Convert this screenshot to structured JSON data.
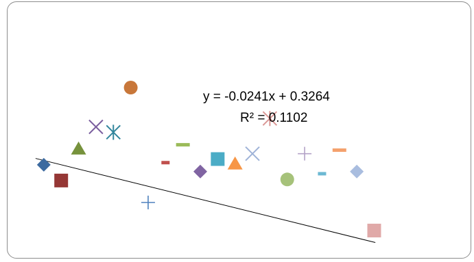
{
  "chart_data": {
    "type": "scatter",
    "title": "",
    "xlabel": "",
    "ylabel": "",
    "xlim": [
      0,
      20
    ],
    "ylim": [
      -0.2,
      1.2
    ],
    "grid": false,
    "legend": "none",
    "series": [
      {
        "marker": "diamond",
        "color": "#3c6a9f",
        "x": 1,
        "y": 0.278
      },
      {
        "marker": "square",
        "color": "#953735",
        "x": 2,
        "y": 0.19
      },
      {
        "marker": "triangle",
        "color": "#76923c",
        "x": 3,
        "y": 0.37
      },
      {
        "marker": "x",
        "color": "#7b5f9f",
        "x": 4,
        "y": 0.49
      },
      {
        "marker": "star",
        "color": "#31859c",
        "x": 5,
        "y": 0.46
      },
      {
        "marker": "circle",
        "color": "#c8773a",
        "x": 6,
        "y": 0.71
      },
      {
        "marker": "plus",
        "color": "#4f81bd",
        "x": 7,
        "y": 0.067
      },
      {
        "marker": "dash",
        "color": "#c0504d",
        "x": 8,
        "y": 0.29
      },
      {
        "marker": "dash",
        "color": "#9bbb59",
        "x": 9,
        "y": 0.39
      },
      {
        "marker": "diamond",
        "color": "#8064a2",
        "x": 10,
        "y": 0.24
      },
      {
        "marker": "square",
        "color": "#4bacc6",
        "x": 11,
        "y": 0.31
      },
      {
        "marker": "triangle",
        "color": "#f79646",
        "x": 12,
        "y": 0.286
      },
      {
        "marker": "x",
        "color": "#9fb3d8",
        "x": 13,
        "y": 0.34
      },
      {
        "marker": "star",
        "color": "#da9694",
        "x": 14,
        "y": 0.537
      },
      {
        "marker": "circle",
        "color": "#a6c27a",
        "x": 15,
        "y": 0.196
      },
      {
        "marker": "plus",
        "color": "#b3a2c7",
        "x": 16,
        "y": 0.34
      },
      {
        "marker": "dash",
        "color": "#6cb8d3",
        "x": 17,
        "y": 0.228
      },
      {
        "marker": "dash",
        "color": "#f4a16d",
        "x": 18,
        "y": 0.36
      },
      {
        "marker": "diamond",
        "color": "#a9bddf",
        "x": 19,
        "y": 0.24
      },
      {
        "marker": "square",
        "color": "#e0a9a8",
        "x": 20,
        "y": -0.09
      }
    ],
    "trendline": {
      "type": "linear",
      "slope": -0.0241,
      "intercept": 0.3264,
      "equation": "y = -0.0241x + 0.3264",
      "r_squared": "R² = 0.1102",
      "color": "#000000"
    }
  }
}
